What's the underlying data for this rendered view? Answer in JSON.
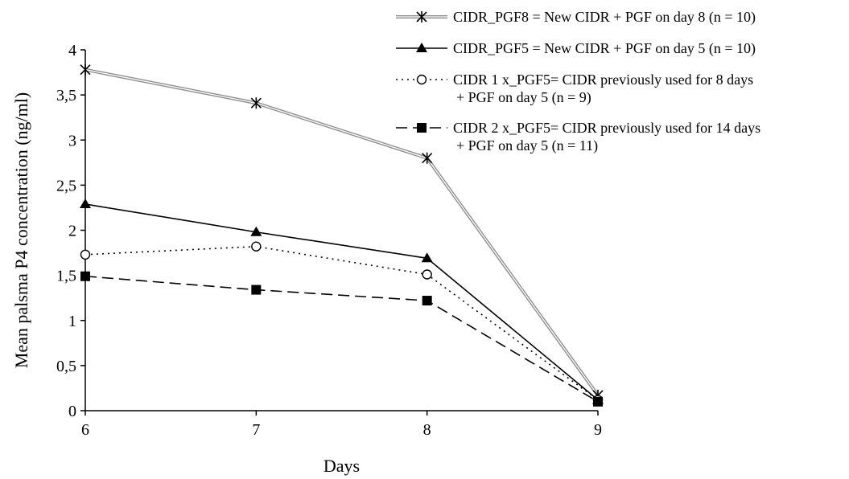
{
  "chart_data": {
    "type": "line",
    "title": "",
    "xlabel": "Days",
    "ylabel": "Mean palsma P4 concentration (ng/ml)",
    "x": [
      6,
      7,
      8,
      9
    ],
    "x_tick_labels": [
      "6",
      "7",
      "8",
      "9"
    ],
    "ylim": [
      0,
      4
    ],
    "y_ticks": [
      0,
      0.5,
      1,
      1.5,
      2,
      2.5,
      3,
      3.5,
      4
    ],
    "y_tick_labels": [
      "0",
      "0,5",
      "1",
      "1,5",
      "2",
      "2,5",
      "3",
      "3,5",
      "4"
    ],
    "grid": false,
    "legend_position": "top-right",
    "series": [
      {
        "name_lines": [
          "CIDR_PGF8 = New CIDR + PGF on day 8 (n = 10)"
        ],
        "values": [
          3.78,
          3.41,
          2.8,
          0.17
        ],
        "marker": "asterisk",
        "line_style": "double-gray",
        "color": "#808080"
      },
      {
        "name_lines": [
          "CIDR_PGF5 = New CIDR + PGF on day 5 (n = 10)"
        ],
        "values": [
          2.29,
          1.98,
          1.69,
          0.12
        ],
        "marker": "triangle",
        "line_style": "solid",
        "color": "#000000"
      },
      {
        "name_lines": [
          "CIDR 1 x_PGF5= CIDR previously used for 8 days",
          "+ PGF on day 5 (n = 9)"
        ],
        "values": [
          1.73,
          1.82,
          1.51,
          0.12
        ],
        "marker": "circle-open",
        "line_style": "dotted",
        "color": "#000000"
      },
      {
        "name_lines": [
          "CIDR 2 x_PGF5= CIDR previously used for 14 days",
          "+ PGF on day 5 (n = 11)"
        ],
        "values": [
          1.49,
          1.34,
          1.22,
          0.1
        ],
        "marker": "square",
        "line_style": "dashed",
        "color": "#000000"
      }
    ]
  }
}
